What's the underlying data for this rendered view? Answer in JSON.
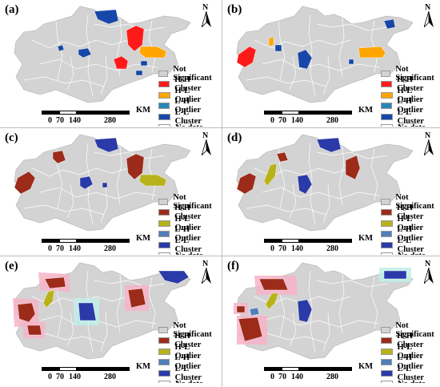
{
  "colors": {
    "land": "#d3d3d3",
    "border": "#ffffff",
    "hh_bright": "#ff1a1a",
    "hl_bright": "#ffa500",
    "lh_bright": "#2a84b8",
    "ll_bright": "#1747a8",
    "hh_dark": "#9c2b1a",
    "hl_dark": "#b8b21a",
    "lh_dark": "#4f7fb8",
    "ll_dark": "#2a3aa8",
    "halo_hh": "#f7b3c8",
    "halo_ll": "#bfeee8"
  },
  "legend_items": [
    "Not Significant",
    "H-H Cluster",
    "H-L Outlier",
    "L-H Outlier",
    "L-L Cluster",
    "No date"
  ],
  "scale": {
    "unit": "KM",
    "ticks": [
      "0",
      "70",
      "140",
      "280"
    ]
  },
  "north_label": "N",
  "panels": [
    {
      "label": "(a)",
      "palette": "bright",
      "halo": false
    },
    {
      "label": "(b)",
      "palette": "bright",
      "halo": false
    },
    {
      "label": "(c)",
      "palette": "dark",
      "halo": false
    },
    {
      "label": "(d)",
      "palette": "dark",
      "halo": false
    },
    {
      "label": "(e)",
      "palette": "dark",
      "halo": true
    },
    {
      "label": "(f)",
      "palette": "dark",
      "halo": true
    }
  ]
}
